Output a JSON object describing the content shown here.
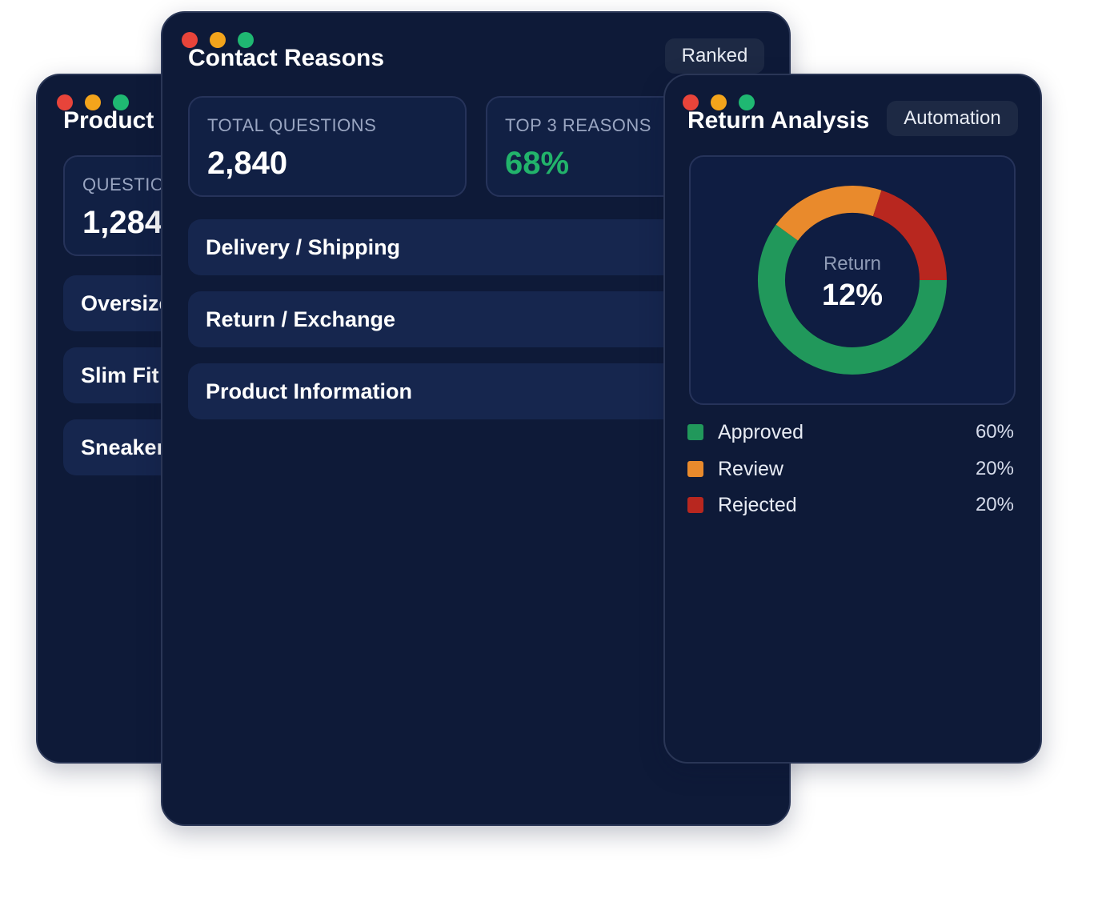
{
  "windows": {
    "product": {
      "title": "Product I",
      "stat": {
        "label": "QUESTION",
        "value": "1,284"
      },
      "rows": [
        "Oversize",
        "Slim Fit .",
        "Sneaker"
      ]
    },
    "contact": {
      "title": "Contact Reasons",
      "chip": "Ranked",
      "stats": [
        {
          "label": "TOTAL QUESTIONS",
          "value": "2,840"
        },
        {
          "label": "TOP 3 REASONS",
          "value": "68%"
        }
      ],
      "rows": [
        "Delivery / Shipping",
        "Return / Exchange",
        "Product Information"
      ]
    },
    "returns": {
      "title": "Return Analysis",
      "chip": "Automation",
      "donut": {
        "label": "Return",
        "value": "12%"
      },
      "legend": [
        {
          "label": "Approved",
          "value": "60%"
        },
        {
          "label": "Review",
          "value": "20%"
        },
        {
          "label": "Rejected",
          "value": "20%"
        }
      ]
    }
  },
  "colors": {
    "approved": "#21985b",
    "review": "#e98a2c",
    "rejected": "#b8271f",
    "accent_green": "#22b36b"
  },
  "chart_data": {
    "type": "pie",
    "categories": [
      "Approved",
      "Review",
      "Rejected"
    ],
    "values": [
      60,
      20,
      20
    ]
  }
}
